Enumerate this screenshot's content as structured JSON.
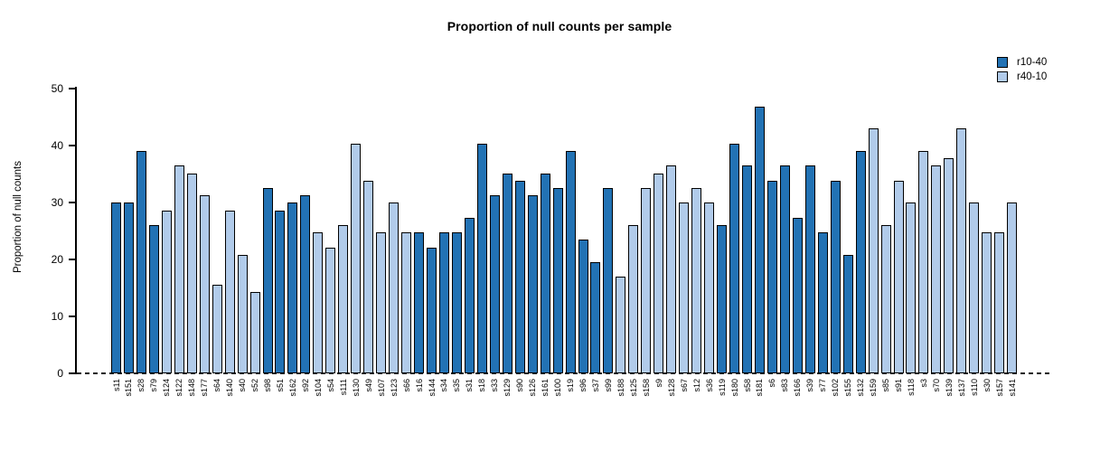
{
  "chart_data": {
    "type": "bar",
    "title": "Proportion of null counts per sample",
    "xlabel": "",
    "ylabel": "Proportion of null counts",
    "ylim": [
      0,
      50
    ],
    "yticks": [
      0,
      10,
      20,
      30,
      40,
      50
    ],
    "grid": false,
    "legend_position": "top-right",
    "zero_line_style": "dashed",
    "series": [
      {
        "name": "r10-40",
        "color": "#2272b4"
      },
      {
        "name": "r40-10",
        "color": "#b1cbea"
      }
    ],
    "bars": [
      {
        "label": "s11",
        "value": 29.9,
        "series": "r10-40"
      },
      {
        "label": "s151",
        "value": 29.9,
        "series": "r10-40"
      },
      {
        "label": "s28",
        "value": 39.0,
        "series": "r10-40"
      },
      {
        "label": "s79",
        "value": 26.0,
        "series": "r10-40"
      },
      {
        "label": "s124",
        "value": 28.6,
        "series": "r40-10"
      },
      {
        "label": "s122",
        "value": 36.4,
        "series": "r40-10"
      },
      {
        "label": "s148",
        "value": 35.1,
        "series": "r40-10"
      },
      {
        "label": "s177",
        "value": 31.2,
        "series": "r40-10"
      },
      {
        "label": "s64",
        "value": 15.6,
        "series": "r40-10"
      },
      {
        "label": "s140",
        "value": 28.6,
        "series": "r40-10"
      },
      {
        "label": "s40",
        "value": 20.8,
        "series": "r40-10"
      },
      {
        "label": "s52",
        "value": 14.3,
        "series": "r40-10"
      },
      {
        "label": "s98",
        "value": 32.5,
        "series": "r10-40"
      },
      {
        "label": "s51",
        "value": 28.6,
        "series": "r10-40"
      },
      {
        "label": "s162",
        "value": 29.9,
        "series": "r10-40"
      },
      {
        "label": "s92",
        "value": 31.2,
        "series": "r10-40"
      },
      {
        "label": "s104",
        "value": 24.7,
        "series": "r40-10"
      },
      {
        "label": "s54",
        "value": 22.1,
        "series": "r40-10"
      },
      {
        "label": "s111",
        "value": 26.0,
        "series": "r40-10"
      },
      {
        "label": "s130",
        "value": 40.3,
        "series": "r40-10"
      },
      {
        "label": "s49",
        "value": 33.8,
        "series": "r40-10"
      },
      {
        "label": "s107",
        "value": 24.7,
        "series": "r40-10"
      },
      {
        "label": "s123",
        "value": 29.9,
        "series": "r40-10"
      },
      {
        "label": "s66",
        "value": 24.7,
        "series": "r40-10"
      },
      {
        "label": "s16",
        "value": 24.7,
        "series": "r10-40"
      },
      {
        "label": "s144",
        "value": 22.1,
        "series": "r10-40"
      },
      {
        "label": "s34",
        "value": 24.7,
        "series": "r10-40"
      },
      {
        "label": "s35",
        "value": 24.7,
        "series": "r10-40"
      },
      {
        "label": "s31",
        "value": 27.3,
        "series": "r10-40"
      },
      {
        "label": "s18",
        "value": 40.3,
        "series": "r10-40"
      },
      {
        "label": "s33",
        "value": 31.2,
        "series": "r10-40"
      },
      {
        "label": "s129",
        "value": 35.1,
        "series": "r10-40"
      },
      {
        "label": "s90",
        "value": 33.8,
        "series": "r10-40"
      },
      {
        "label": "s126",
        "value": 31.2,
        "series": "r10-40"
      },
      {
        "label": "s161",
        "value": 35.1,
        "series": "r10-40"
      },
      {
        "label": "s100",
        "value": 32.5,
        "series": "r10-40"
      },
      {
        "label": "s19",
        "value": 39.0,
        "series": "r10-40"
      },
      {
        "label": "s96",
        "value": 23.4,
        "series": "r10-40"
      },
      {
        "label": "s37",
        "value": 19.5,
        "series": "r10-40"
      },
      {
        "label": "s99",
        "value": 32.5,
        "series": "r10-40"
      },
      {
        "label": "s188",
        "value": 16.9,
        "series": "r40-10"
      },
      {
        "label": "s125",
        "value": 26.0,
        "series": "r40-10"
      },
      {
        "label": "s158",
        "value": 32.5,
        "series": "r40-10"
      },
      {
        "label": "s9",
        "value": 35.1,
        "series": "r40-10"
      },
      {
        "label": "s128",
        "value": 36.4,
        "series": "r40-10"
      },
      {
        "label": "s67",
        "value": 29.9,
        "series": "r40-10"
      },
      {
        "label": "s12",
        "value": 32.5,
        "series": "r40-10"
      },
      {
        "label": "s36",
        "value": 29.9,
        "series": "r40-10"
      },
      {
        "label": "s119",
        "value": 26.0,
        "series": "r10-40"
      },
      {
        "label": "s180",
        "value": 40.3,
        "series": "r10-40"
      },
      {
        "label": "s58",
        "value": 36.4,
        "series": "r10-40"
      },
      {
        "label": "s181",
        "value": 46.8,
        "series": "r10-40"
      },
      {
        "label": "s6",
        "value": 33.8,
        "series": "r10-40"
      },
      {
        "label": "s83",
        "value": 36.4,
        "series": "r10-40"
      },
      {
        "label": "s166",
        "value": 27.3,
        "series": "r10-40"
      },
      {
        "label": "s39",
        "value": 36.4,
        "series": "r10-40"
      },
      {
        "label": "s77",
        "value": 24.7,
        "series": "r10-40"
      },
      {
        "label": "s102",
        "value": 33.8,
        "series": "r10-40"
      },
      {
        "label": "s155",
        "value": 20.8,
        "series": "r10-40"
      },
      {
        "label": "s132",
        "value": 39.0,
        "series": "r10-40"
      },
      {
        "label": "s159",
        "value": 42.9,
        "series": "r40-10"
      },
      {
        "label": "s85",
        "value": 26.0,
        "series": "r40-10"
      },
      {
        "label": "s91",
        "value": 33.8,
        "series": "r40-10"
      },
      {
        "label": "s118",
        "value": 29.9,
        "series": "r40-10"
      },
      {
        "label": "s3",
        "value": 39.0,
        "series": "r40-10"
      },
      {
        "label": "s70",
        "value": 36.4,
        "series": "r40-10"
      },
      {
        "label": "s139",
        "value": 37.7,
        "series": "r40-10"
      },
      {
        "label": "s137",
        "value": 42.9,
        "series": "r40-10"
      },
      {
        "label": "s110",
        "value": 29.9,
        "series": "r40-10"
      },
      {
        "label": "s30",
        "value": 24.7,
        "series": "r40-10"
      },
      {
        "label": "s157",
        "value": 24.7,
        "series": "r40-10"
      },
      {
        "label": "s141",
        "value": 29.9,
        "series": "r40-10"
      }
    ]
  }
}
